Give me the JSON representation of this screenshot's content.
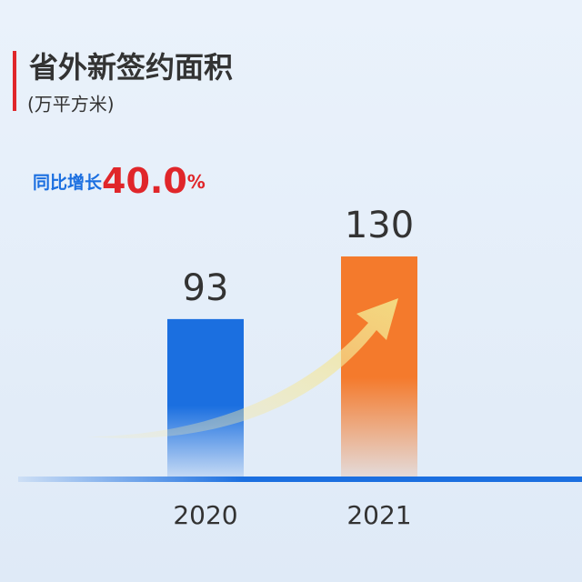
{
  "chart_data": {
    "type": "bar",
    "title": "省外新签约面积",
    "subtitle": "(万平方米)",
    "annotation": {
      "label": "同比增长",
      "value": "40.0",
      "unit": "%"
    },
    "categories": [
      "2020",
      "2021"
    ],
    "values": [
      93,
      130
    ],
    "colors": [
      "#1b6fe0",
      "#f47a2c"
    ]
  }
}
